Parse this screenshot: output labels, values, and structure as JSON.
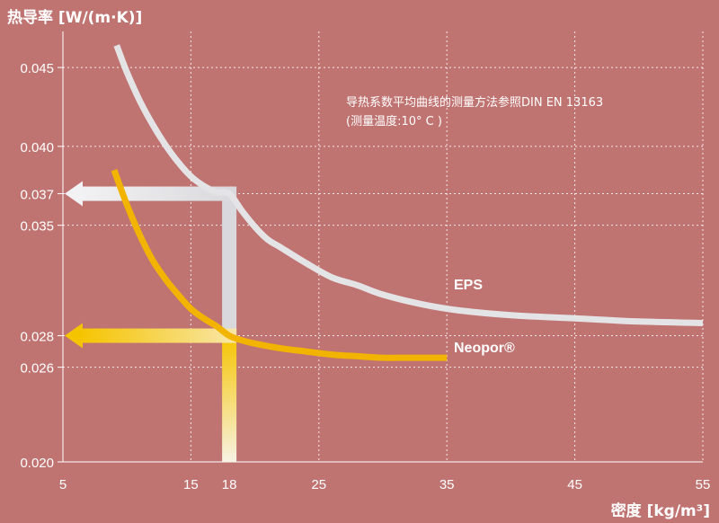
{
  "chart_data": {
    "type": "line",
    "ylabel": "热导率 [W/(m·K)]",
    "xlabel": "密度 [kg/m³]",
    "annotation_line1": "导热系数平均曲线的测量方法参照DIN EN 13163",
    "annotation_line2": "(测量温度:10° C )",
    "xlim": [
      5,
      55
    ],
    "ylim": [
      0.02,
      0.047
    ],
    "x_ticks": [
      5,
      15,
      18,
      25,
      35,
      45,
      55
    ],
    "x_tick_labels": [
      "5",
      "15",
      "18",
      "25",
      "35",
      "45",
      "55"
    ],
    "y_ticks": [
      0.02,
      0.026,
      0.028,
      0.035,
      0.037,
      0.04,
      0.045
    ],
    "y_tick_labels": [
      "0.020",
      "0.026",
      "0.028",
      "0.035",
      "0.037",
      "0.040",
      "0.045"
    ],
    "grid": true,
    "series": [
      {
        "name": "EPS",
        "color": "#e4e4e6",
        "x": [
          9.2,
          10,
          11,
          12,
          13,
          14,
          15,
          16,
          17,
          18,
          19,
          20,
          21,
          22,
          24,
          26,
          28,
          30,
          33,
          36,
          40,
          45,
          50,
          55
        ],
        "y": [
          0.0464,
          0.0447,
          0.0429,
          0.0414,
          0.0401,
          0.039,
          0.0381,
          0.0375,
          0.0371,
          0.037,
          0.0359,
          0.0349,
          0.0341,
          0.0336,
          0.0326,
          0.0317,
          0.0312,
          0.0306,
          0.03,
          0.0296,
          0.0293,
          0.0291,
          0.0289,
          0.0288
        ]
      },
      {
        "name": "Neopor®",
        "color": "#f2b400",
        "x": [
          9,
          10,
          11,
          12,
          13,
          14,
          15,
          16,
          17,
          18,
          19,
          20,
          22,
          24,
          26,
          28,
          30,
          32,
          35
        ],
        "y": [
          0.0385,
          0.0363,
          0.0344,
          0.0328,
          0.0316,
          0.0306,
          0.0297,
          0.0291,
          0.0286,
          0.028,
          0.0277,
          0.0275,
          0.0272,
          0.027,
          0.0268,
          0.0267,
          0.0266,
          0.0266,
          0.0266
        ]
      }
    ],
    "arrows": [
      {
        "series": "EPS",
        "x": 18,
        "y": 0.037,
        "color": "#d9d9dd"
      },
      {
        "series": "Neopor®",
        "x": 18,
        "y": 0.028,
        "color": "#f5c400"
      }
    ]
  }
}
